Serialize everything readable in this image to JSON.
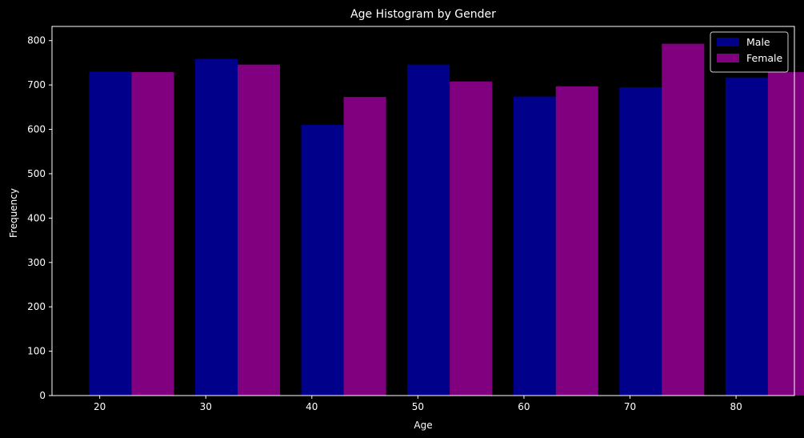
{
  "chart_data": {
    "type": "bar",
    "title": "Age Histogram by Gender",
    "xlabel": "Age",
    "ylabel": "Frequency",
    "x_ticks": [
      20,
      30,
      40,
      50,
      60,
      70,
      80
    ],
    "y_ticks": [
      0,
      100,
      200,
      300,
      400,
      500,
      600,
      700,
      800
    ],
    "xlim": [
      15.5,
      85.5
    ],
    "ylim": [
      0,
      832
    ],
    "bin_edges": [
      19,
      29,
      39,
      49,
      59,
      69,
      79,
      89
    ],
    "bar_width_fraction": 0.4,
    "grid": false,
    "legend_position": "top-right",
    "series": [
      {
        "name": "Male",
        "color": "#00008b",
        "values": [
          730,
          759,
          610,
          746,
          674,
          695,
          717
        ]
      },
      {
        "name": "Female",
        "color": "#800080",
        "values": [
          729,
          746,
          673,
          708,
          697,
          793,
          729
        ]
      }
    ]
  }
}
